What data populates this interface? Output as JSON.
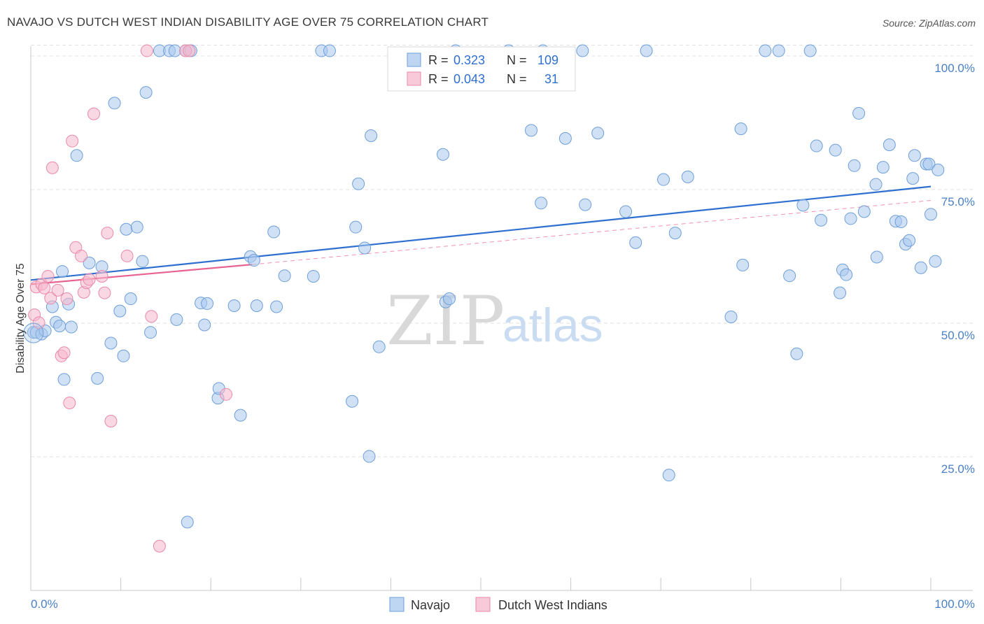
{
  "title": "NAVAJO VS DUTCH WEST INDIAN DISABILITY AGE OVER 75 CORRELATION CHART",
  "source": "Source: ZipAtlas.com",
  "colors": {
    "navajo_fill": "#a9c8ee",
    "navajo_stroke": "#6e9fd8",
    "navajo_line": "#2f6fd0",
    "dutch_fill": "#f5b8cc",
    "dutch_stroke": "#e88aa8",
    "dutch_line": "#e8638f",
    "tick_text": "#4a80c8"
  },
  "legend": {
    "r_label": "R =",
    "n_label": "N =",
    "rows": [
      {
        "series": "Navajo",
        "r": "0.323",
        "n": "109"
      },
      {
        "series": "Dutch West Indians",
        "r": "0.043",
        "n": "31"
      }
    ]
  },
  "watermark": {
    "zip": "ZIP",
    "atlas": "atlas"
  },
  "chart_data": {
    "type": "scatter",
    "title": "NAVAJO VS DUTCH WEST INDIAN DISABILITY AGE OVER 75 CORRELATION CHART",
    "xlabel": "",
    "ylabel": "Disability Age Over 75",
    "xlim": [
      0,
      100
    ],
    "ylim": [
      0,
      104
    ],
    "x_tick_labels": [
      "0.0%",
      "100.0%"
    ],
    "y_ticks": [
      25,
      50,
      75,
      100
    ],
    "y_tick_labels": [
      "25.0%",
      "50.0%",
      "75.0%",
      "100.0%"
    ],
    "grid": true,
    "legend_position": "top-center",
    "series": [
      {
        "name": "Navajo",
        "r": 0.323,
        "n": 109,
        "trend": {
          "x": [
            0,
            100
          ],
          "y": [
            60.3,
            77.8
          ]
        },
        "points": [
          [
            0.3,
            50.5
          ],
          [
            0.6,
            50.5
          ],
          [
            1.2,
            50.2
          ],
          [
            1.6,
            50.8
          ],
          [
            2.4,
            55.3
          ],
          [
            2.8,
            52.4
          ],
          [
            3.2,
            51.7
          ],
          [
            3.5,
            61.9
          ],
          [
            3.7,
            41.7
          ],
          [
            4.2,
            55.8
          ],
          [
            4.5,
            51.5
          ],
          [
            5.1,
            83.6
          ],
          [
            6.5,
            63.5
          ],
          [
            7.4,
            41.9
          ],
          [
            7.9,
            62.8
          ],
          [
            8.9,
            48.5
          ],
          [
            9.3,
            93.4
          ],
          [
            9.9,
            54.5
          ],
          [
            10.3,
            46.1
          ],
          [
            10.6,
            69.8
          ],
          [
            11.1,
            56.8
          ],
          [
            11.8,
            70.2
          ],
          [
            12.4,
            63.8
          ],
          [
            12.8,
            95.4
          ],
          [
            13.3,
            50.5
          ],
          [
            14.3,
            103.2
          ],
          [
            15.4,
            103.2
          ],
          [
            16.0,
            103.2
          ],
          [
            16.2,
            52.9
          ],
          [
            17.2,
            103.2
          ],
          [
            17.8,
            103.2
          ],
          [
            17.4,
            15.0
          ],
          [
            18.9,
            56.0
          ],
          [
            19.3,
            51.9
          ],
          [
            19.6,
            55.9
          ],
          [
            20.8,
            38.2
          ],
          [
            20.9,
            40.0
          ],
          [
            23.3,
            35.0
          ],
          [
            22.6,
            55.5
          ],
          [
            24.4,
            64.7
          ],
          [
            24.8,
            64.0
          ],
          [
            25.1,
            55.5
          ],
          [
            27.0,
            69.3
          ],
          [
            27.3,
            55.3
          ],
          [
            32.3,
            103.2
          ],
          [
            33.2,
            103.2
          ],
          [
            28.2,
            61.1
          ],
          [
            31.4,
            61.0
          ],
          [
            35.7,
            37.6
          ],
          [
            36.1,
            70.2
          ],
          [
            37.1,
            66.3
          ],
          [
            36.4,
            78.3
          ],
          [
            37.6,
            27.3
          ],
          [
            37.8,
            87.3
          ],
          [
            38.7,
            47.8
          ],
          [
            46.1,
            56.2
          ],
          [
            46.5,
            56.8
          ],
          [
            45.8,
            83.8
          ],
          [
            47.2,
            103.2
          ],
          [
            53.1,
            103.2
          ],
          [
            55.6,
            88.3
          ],
          [
            56.7,
            74.7
          ],
          [
            56.9,
            103.2
          ],
          [
            59.4,
            86.8
          ],
          [
            61.3,
            103.2
          ],
          [
            61.6,
            74.4
          ],
          [
            63.0,
            87.8
          ],
          [
            66.1,
            73.1
          ],
          [
            67.2,
            67.3
          ],
          [
            68.4,
            103.2
          ],
          [
            70.3,
            79.1
          ],
          [
            70.9,
            23.8
          ],
          [
            71.6,
            69.1
          ],
          [
            73.0,
            79.6
          ],
          [
            77.8,
            53.4
          ],
          [
            78.9,
            88.6
          ],
          [
            79.1,
            63.1
          ],
          [
            81.6,
            103.2
          ],
          [
            83.1,
            103.2
          ],
          [
            84.3,
            61.1
          ],
          [
            85.1,
            46.5
          ],
          [
            85.8,
            74.3
          ],
          [
            86.6,
            103.2
          ],
          [
            87.3,
            85.4
          ],
          [
            87.8,
            71.5
          ],
          [
            89.4,
            84.6
          ],
          [
            89.9,
            57.9
          ],
          [
            90.2,
            62.2
          ],
          [
            90.6,
            61.3
          ],
          [
            91.5,
            81.7
          ],
          [
            91.1,
            71.8
          ],
          [
            92.0,
            91.5
          ],
          [
            92.6,
            73.1
          ],
          [
            93.9,
            78.2
          ],
          [
            94.0,
            64.6
          ],
          [
            94.7,
            81.4
          ],
          [
            95.4,
            85.6
          ],
          [
            96.1,
            71.3
          ],
          [
            97.2,
            67.0
          ],
          [
            96.7,
            71.2
          ],
          [
            97.6,
            67.7
          ],
          [
            98.0,
            79.3
          ],
          [
            98.2,
            83.6
          ],
          [
            98.9,
            62.6
          ],
          [
            99.5,
            82.0
          ],
          [
            99.8,
            82.0
          ],
          [
            100.0,
            72.6
          ],
          [
            100.5,
            63.8
          ],
          [
            100.8,
            80.9
          ]
        ]
      },
      {
        "name": "Dutch West Indians",
        "r": 0.043,
        "n": 31,
        "trend": {
          "x": [
            0,
            24.6
          ],
          "y": [
            59.5,
            63.2
          ]
        },
        "trend_extended": {
          "x": [
            24.6,
            100
          ],
          "y": [
            63.2,
            75.2
          ]
        },
        "points": [
          [
            0.4,
            53.8
          ],
          [
            0.6,
            59.0
          ],
          [
            0.9,
            52.3
          ],
          [
            1.2,
            59.5
          ],
          [
            1.5,
            58.8
          ],
          [
            1.9,
            61.0
          ],
          [
            2.2,
            56.9
          ],
          [
            2.4,
            81.3
          ],
          [
            3.0,
            58.4
          ],
          [
            3.4,
            46.1
          ],
          [
            3.7,
            46.7
          ],
          [
            4.0,
            56.8
          ],
          [
            4.3,
            37.3
          ],
          [
            4.6,
            86.3
          ],
          [
            5.0,
            66.4
          ],
          [
            5.6,
            64.8
          ],
          [
            5.9,
            58.0
          ],
          [
            6.2,
            59.8
          ],
          [
            6.5,
            60.4
          ],
          [
            7.0,
            91.4
          ],
          [
            7.9,
            61.0
          ],
          [
            8.2,
            57.9
          ],
          [
            8.5,
            69.1
          ],
          [
            8.9,
            33.9
          ],
          [
            10.7,
            64.8
          ],
          [
            12.9,
            103.2
          ],
          [
            13.4,
            53.5
          ],
          [
            14.3,
            10.5
          ],
          [
            17.2,
            103.2
          ],
          [
            17.6,
            103.2
          ],
          [
            21.7,
            38.9
          ]
        ]
      }
    ]
  }
}
